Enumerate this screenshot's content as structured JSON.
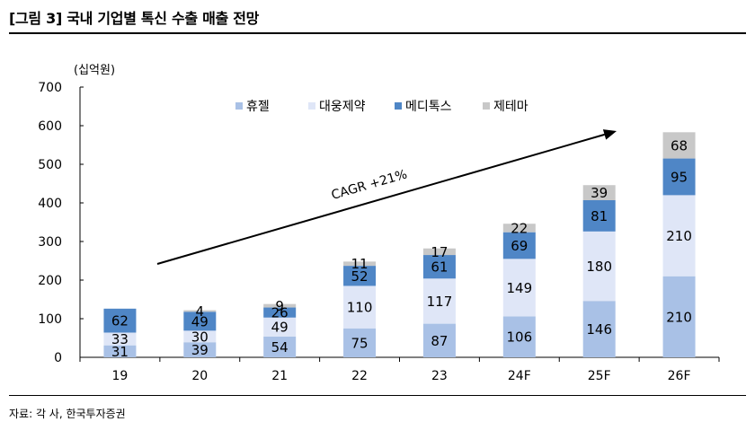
{
  "figure": {
    "title": "[그림 3] 국내 기업별 톡신 수출 매출 전망",
    "source": "자료: 각 사, 한국투자증권"
  },
  "chart_data": {
    "type": "bar",
    "stacked": true,
    "title": "",
    "xlabel": "",
    "ylabel": "(십억원)",
    "ylim": [
      0,
      700
    ],
    "yticks": [
      0,
      100,
      200,
      300,
      400,
      500,
      600,
      700
    ],
    "grid": false,
    "legend_position": "top-center",
    "categories": [
      "19",
      "20",
      "21",
      "22",
      "23",
      "24F",
      "25F",
      "26F"
    ],
    "series": [
      {
        "name": "휴젤",
        "color": "#a9c1e6",
        "label_color": "#000000",
        "values": [
          31,
          39,
          54,
          75,
          87,
          106,
          146,
          210
        ]
      },
      {
        "name": "대웅제약",
        "color": "#dfe6f7",
        "label_color": "#000000",
        "values": [
          33,
          30,
          49,
          110,
          117,
          149,
          180,
          210
        ]
      },
      {
        "name": "메디톡스",
        "color": "#4f86c6",
        "label_color": "#000000",
        "values": [
          62,
          49,
          26,
          52,
          61,
          69,
          81,
          95
        ]
      },
      {
        "name": "제테마",
        "color": "#c8c8c8",
        "label_color": "#000000",
        "values": [
          null,
          4,
          9,
          11,
          17,
          22,
          39,
          68
        ]
      }
    ],
    "annotations": [
      {
        "type": "arrow",
        "label": "CAGR +21%"
      }
    ]
  }
}
